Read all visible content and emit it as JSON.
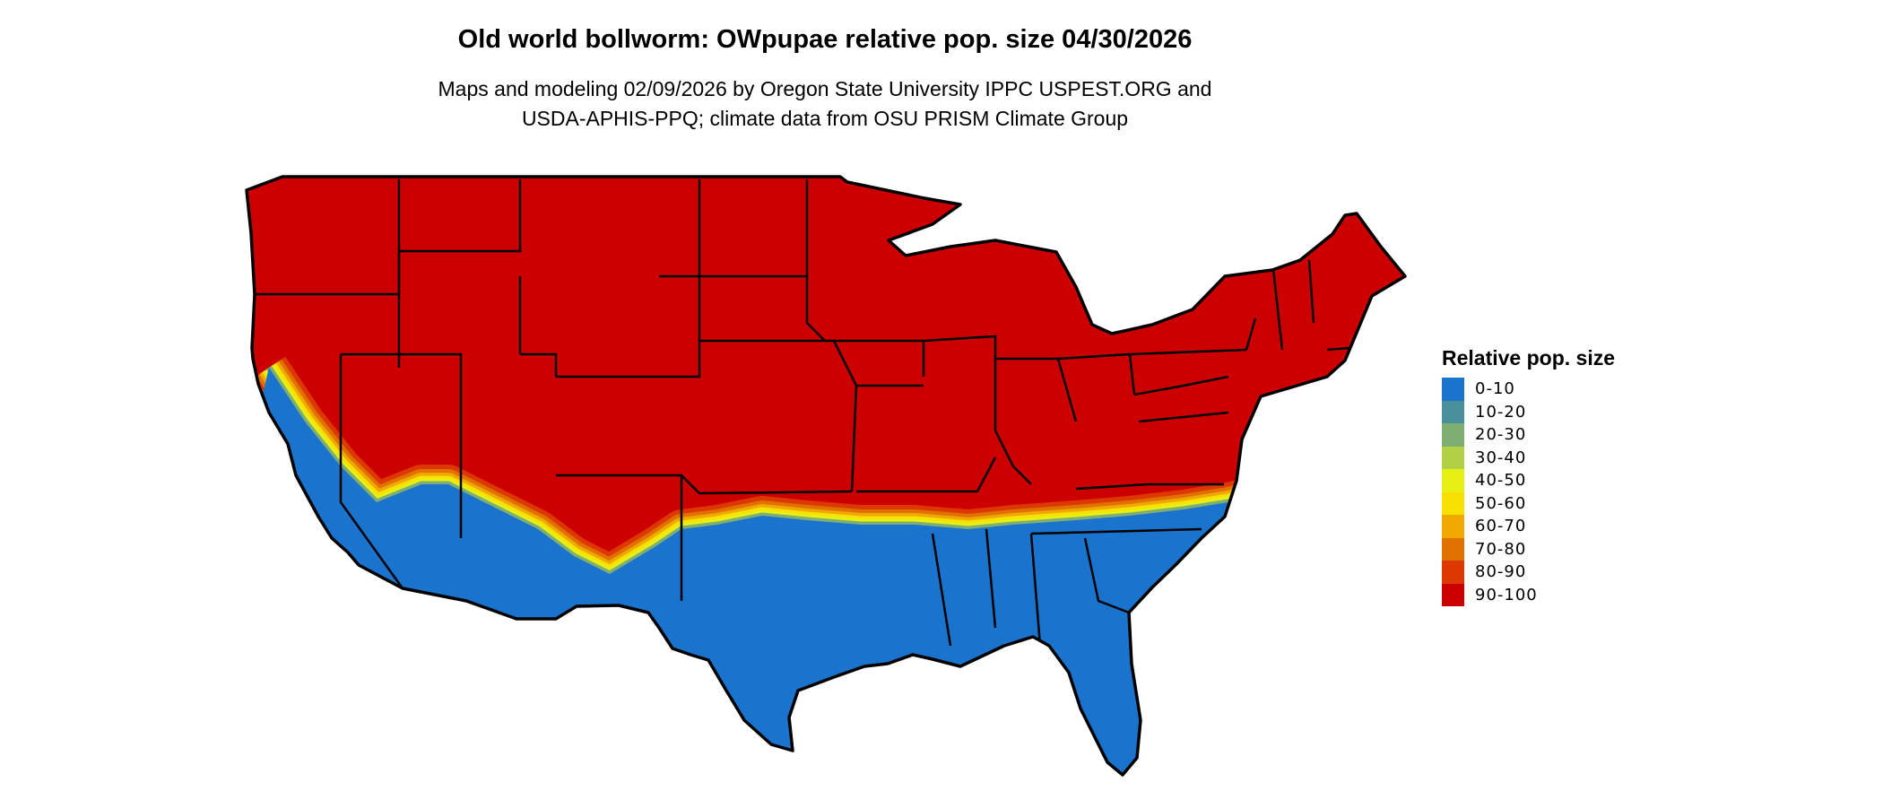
{
  "title": "Old world bollworm: OWpupae relative pop. size 04/30/2026",
  "subtitle_lines": [
    "Maps and modeling 02/09/2026 by Oregon State University IPPC USPEST.ORG and",
    "USDA-APHIS-PPQ; climate data from OSU PRISM Climate Group"
  ],
  "legend": {
    "title": "Relative pop. size",
    "items": [
      {
        "label": "0-10",
        "color": "#1a73cc"
      },
      {
        "label": "10-20",
        "color": "#4a909c"
      },
      {
        "label": "20-30",
        "color": "#7fae72"
      },
      {
        "label": "30-40",
        "color": "#b2d044"
      },
      {
        "label": "40-50",
        "color": "#e6f014"
      },
      {
        "label": "50-60",
        "color": "#f8e000"
      },
      {
        "label": "60-70",
        "color": "#f0a800"
      },
      {
        "label": "70-80",
        "color": "#e07000"
      },
      {
        "label": "80-90",
        "color": "#dc3800"
      },
      {
        "label": "90-100",
        "color": "#cc0000"
      }
    ]
  }
}
